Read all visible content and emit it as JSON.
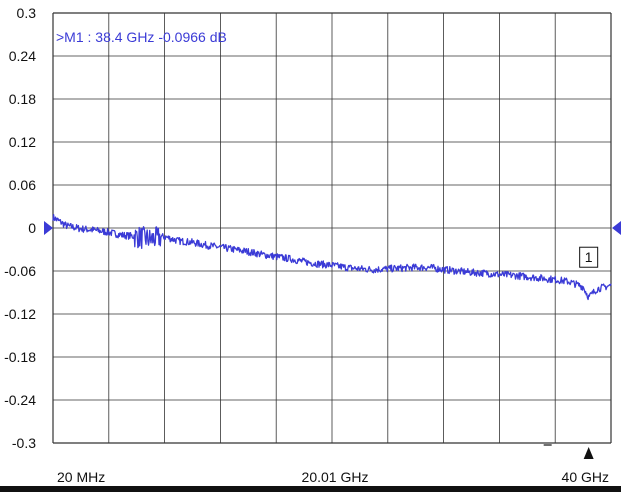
{
  "chart_data": {
    "type": "line",
    "title": "",
    "xlabel": "",
    "ylabel": "",
    "x_range_ghz": [
      0.02,
      40
    ],
    "ylim": [
      -0.3,
      0.3
    ],
    "y_ticks": [
      0.3,
      0.24,
      0.18,
      0.12,
      0.06,
      0,
      -0.06,
      -0.12,
      -0.18,
      -0.24,
      -0.3
    ],
    "y_tick_labels": [
      "0.3",
      "0.24",
      "0.18",
      "0.12",
      "0.06",
      "0",
      "-0.06",
      "-0.12",
      "-0.18",
      "-0.24",
      "-0.3"
    ],
    "x_tick_labels": [
      "20 MHz",
      "20.01 GHz",
      "40 GHz"
    ],
    "grid": true,
    "trace_color": "#3b3bd6",
    "series": [
      {
        "x": [
          0.02,
          1,
          2,
          3,
          4,
          5,
          6,
          7,
          8,
          9,
          10,
          11,
          12,
          13,
          14,
          15,
          16,
          17,
          18,
          19,
          20,
          21,
          22,
          23,
          24,
          25,
          26,
          27,
          28,
          29,
          30,
          31,
          32,
          33,
          34,
          35,
          36,
          37,
          38,
          38.4,
          39,
          40
        ],
        "values": [
          0.015,
          0.003,
          -0.001,
          -0.003,
          -0.006,
          -0.01,
          -0.012,
          -0.016,
          -0.012,
          -0.018,
          -0.02,
          -0.024,
          -0.027,
          -0.03,
          -0.033,
          -0.037,
          -0.04,
          -0.043,
          -0.047,
          -0.05,
          -0.052,
          -0.055,
          -0.057,
          -0.058,
          -0.057,
          -0.056,
          -0.055,
          -0.055,
          -0.058,
          -0.06,
          -0.062,
          -0.063,
          -0.065,
          -0.066,
          -0.068,
          -0.07,
          -0.072,
          -0.075,
          -0.082,
          -0.0966,
          -0.085,
          -0.08
        ]
      }
    ],
    "marker": {
      "id": "1",
      "readout": ">M1 :  38.4 GHz  -0.0966  dB",
      "x": 38.4,
      "y": -0.0966
    }
  }
}
